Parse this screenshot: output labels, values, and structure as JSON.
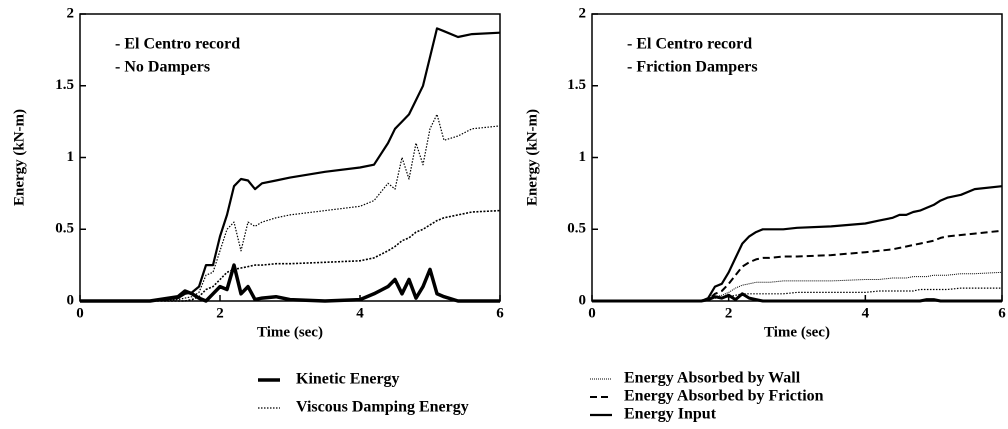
{
  "chart_data": [
    {
      "type": "line",
      "annotations": [
        "- El Centro record",
        "- No Dampers"
      ],
      "x_label": "Time (sec)",
      "y_label": "Energy (kN-m)",
      "xlim": [
        0,
        6
      ],
      "ylim": [
        0,
        2
      ],
      "xticks": [
        0,
        2,
        4,
        6
      ],
      "yticks": [
        0,
        0.5,
        1,
        1.5,
        2
      ],
      "x": [
        0,
        1,
        1.4,
        1.5,
        1.6,
        1.7,
        1.8,
        1.9,
        2.0,
        2.1,
        2.2,
        2.3,
        2.4,
        2.5,
        2.6,
        2.8,
        3,
        3.5,
        4,
        4.2,
        4.4,
        4.5,
        4.6,
        4.7,
        4.8,
        4.9,
        5.0,
        5.1,
        5.2,
        5.4,
        5.6,
        6
      ],
      "series": [
        {
          "name": "Kinetic Energy",
          "color": "#000",
          "width": 3.5,
          "dash": "none",
          "values": [
            0,
            0,
            0.03,
            0.07,
            0.05,
            0.02,
            0.0,
            0.05,
            0.1,
            0.08,
            0.25,
            0.05,
            0.1,
            0.01,
            0.02,
            0.03,
            0.01,
            0.0,
            0.01,
            0.05,
            0.1,
            0.15,
            0.05,
            0.15,
            0.02,
            0.1,
            0.22,
            0.05,
            0.03,
            0.0,
            0.0,
            0.0
          ]
        },
        {
          "name": "Viscous Damping Energy",
          "color": "#000",
          "width": 1.2,
          "dash": "1.5,1.5",
          "values": [
            0,
            0,
            0.01,
            0.02,
            0.03,
            0.06,
            0.18,
            0.2,
            0.35,
            0.5,
            0.55,
            0.35,
            0.55,
            0.52,
            0.55,
            0.58,
            0.6,
            0.63,
            0.66,
            0.7,
            0.82,
            0.78,
            1.0,
            0.85,
            1.1,
            0.95,
            1.2,
            1.3,
            1.12,
            1.15,
            1.2,
            1.22
          ]
        },
        {
          "name": "Energy Absorbed by Wall",
          "color": "#000",
          "width": 1.6,
          "dash": "2,1.5",
          "values": [
            0,
            0,
            0,
            0,
            0.01,
            0.03,
            0.08,
            0.1,
            0.15,
            0.2,
            0.22,
            0.23,
            0.24,
            0.25,
            0.25,
            0.26,
            0.26,
            0.27,
            0.28,
            0.3,
            0.35,
            0.38,
            0.42,
            0.44,
            0.48,
            0.5,
            0.53,
            0.56,
            0.58,
            0.6,
            0.62,
            0.63
          ]
        },
        {
          "name": "Energy Input",
          "color": "#000",
          "width": 2.2,
          "dash": "none",
          "values": [
            0,
            0,
            0.02,
            0.05,
            0.06,
            0.1,
            0.25,
            0.25,
            0.45,
            0.6,
            0.8,
            0.85,
            0.84,
            0.78,
            0.82,
            0.84,
            0.86,
            0.9,
            0.93,
            0.95,
            1.1,
            1.2,
            1.25,
            1.3,
            1.4,
            1.5,
            1.7,
            1.9,
            1.88,
            1.84,
            1.86,
            1.87
          ]
        }
      ]
    },
    {
      "type": "line",
      "annotations": [
        "- El Centro record",
        "- Friction Dampers"
      ],
      "x_label": "Time (sec)",
      "y_label": "Energy (kN-m)",
      "xlim": [
        0,
        6
      ],
      "ylim": [
        0,
        2
      ],
      "xticks": [
        0,
        2,
        4,
        6
      ],
      "yticks": [
        0,
        0.5,
        1,
        1.5,
        2
      ],
      "x": [
        0,
        1,
        1.4,
        1.5,
        1.6,
        1.7,
        1.8,
        1.9,
        2.0,
        2.1,
        2.2,
        2.3,
        2.4,
        2.5,
        2.6,
        2.8,
        3,
        3.5,
        4,
        4.2,
        4.4,
        4.5,
        4.6,
        4.7,
        4.8,
        4.9,
        5.0,
        5.1,
        5.2,
        5.4,
        5.6,
        6
      ],
      "series": [
        {
          "name": "Kinetic Energy",
          "color": "#000",
          "width": 3,
          "dash": "none",
          "values": [
            0,
            0,
            0,
            0,
            0,
            0.01,
            0.03,
            0.02,
            0.04,
            0.01,
            0.05,
            0.02,
            0.01,
            0,
            0,
            0,
            0,
            0,
            0,
            0,
            0,
            0,
            0,
            0,
            0,
            0.01,
            0.01,
            0,
            0,
            0,
            0,
            0
          ]
        },
        {
          "name": "Viscous Damping Energy",
          "color": "#000",
          "width": 1.2,
          "dash": "1.5,1.5",
          "values": [
            0,
            0,
            0,
            0,
            0,
            0.01,
            0.02,
            0.02,
            0.03,
            0.04,
            0.05,
            0.05,
            0.05,
            0.05,
            0.05,
            0.05,
            0.06,
            0.06,
            0.06,
            0.07,
            0.07,
            0.07,
            0.07,
            0.07,
            0.08,
            0.08,
            0.08,
            0.08,
            0.08,
            0.09,
            0.09,
            0.09
          ]
        },
        {
          "name": "Energy Absorbed by Wall",
          "color": "#000",
          "width": 1,
          "dash": "1,1",
          "values": [
            0,
            0,
            0,
            0,
            0,
            0.01,
            0.03,
            0.04,
            0.06,
            0.09,
            0.11,
            0.12,
            0.13,
            0.13,
            0.13,
            0.14,
            0.14,
            0.14,
            0.15,
            0.15,
            0.16,
            0.16,
            0.16,
            0.17,
            0.17,
            0.17,
            0.18,
            0.18,
            0.18,
            0.19,
            0.19,
            0.2
          ]
        },
        {
          "name": "Energy Absorbed by Friction",
          "color": "#000",
          "width": 2,
          "dash": "7,4",
          "values": [
            0,
            0,
            0,
            0,
            0,
            0.01,
            0.05,
            0.07,
            0.12,
            0.18,
            0.24,
            0.27,
            0.29,
            0.3,
            0.3,
            0.31,
            0.31,
            0.32,
            0.34,
            0.35,
            0.36,
            0.37,
            0.38,
            0.39,
            0.4,
            0.41,
            0.42,
            0.44,
            0.45,
            0.46,
            0.47,
            0.49
          ]
        },
        {
          "name": "Energy Input",
          "color": "#000",
          "width": 2.2,
          "dash": "none",
          "values": [
            0,
            0,
            0,
            0,
            0,
            0.02,
            0.1,
            0.12,
            0.2,
            0.3,
            0.4,
            0.45,
            0.48,
            0.5,
            0.5,
            0.5,
            0.51,
            0.52,
            0.54,
            0.56,
            0.58,
            0.6,
            0.6,
            0.62,
            0.63,
            0.65,
            0.67,
            0.7,
            0.72,
            0.74,
            0.78,
            0.8
          ]
        }
      ]
    }
  ]
}
